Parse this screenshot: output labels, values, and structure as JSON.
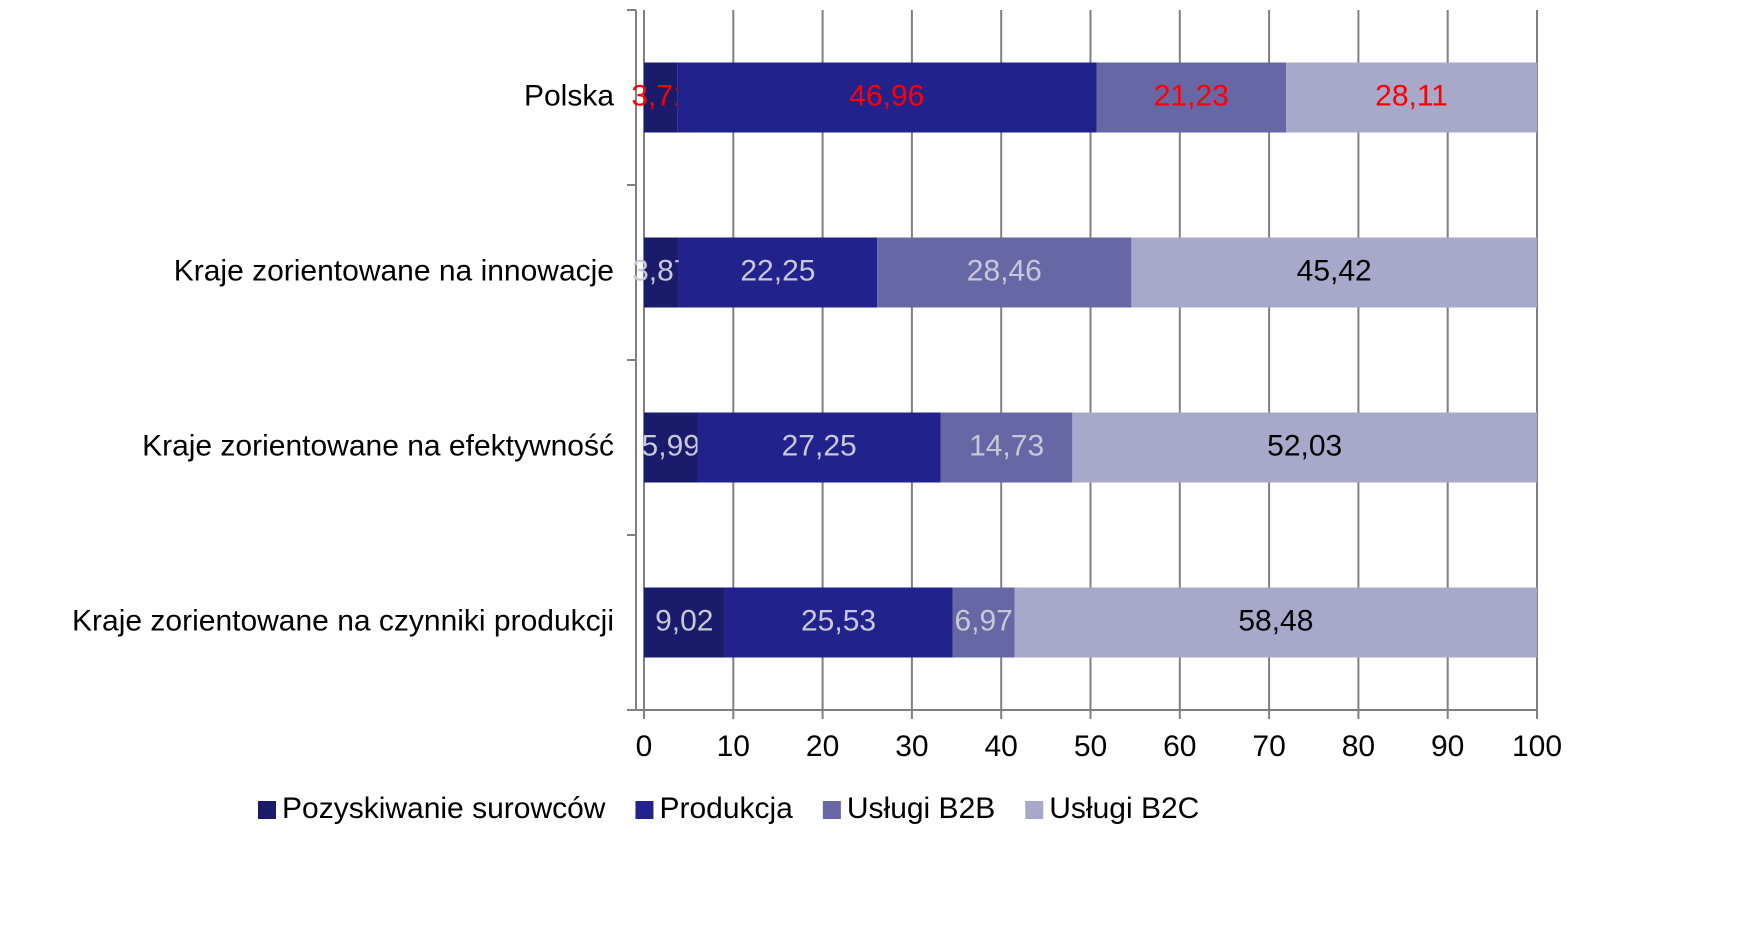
{
  "chart_data": {
    "type": "stacked_barh",
    "categories": [
      "Polska",
      "Kraje zorientowane na innowacje",
      "Kraje zorientowane na efektywność",
      "Kraje zorientowane na czynniki produkcji"
    ],
    "series": [
      {
        "name": "Pozyskiwanie surowców",
        "color": "#1b1b6b",
        "values": [
          3.71,
          3.87,
          5.99,
          9.02
        ],
        "value_labels": [
          "3,71",
          "3,87",
          "5,99",
          "9,02"
        ],
        "label_colors": [
          "#ff0000",
          "#c8c8d8",
          "#c8c8d8",
          "#c8c8d8"
        ]
      },
      {
        "name": "Produkcja",
        "color": "#22228c",
        "values": [
          46.96,
          22.25,
          27.25,
          25.53
        ],
        "value_labels": [
          "46,96",
          "22,25",
          "27,25",
          "25,53"
        ],
        "label_colors": [
          "#ff0000",
          "#c8c8d8",
          "#c8c8d8",
          "#c8c8d8"
        ]
      },
      {
        "name": "Usługi B2B",
        "color": "#6767a6",
        "values": [
          21.23,
          28.46,
          14.73,
          6.97
        ],
        "value_labels": [
          "21,23",
          "28,46",
          "14,73",
          "6,97"
        ],
        "label_colors": [
          "#ff0000",
          "#c8c8d8",
          "#c8c8d8",
          "#c8c8d8"
        ]
      },
      {
        "name": "Usługi B2C",
        "color": "#a8a8cb",
        "values": [
          28.11,
          45.42,
          52.03,
          58.48
        ],
        "value_labels": [
          "28,11",
          "45,42",
          "52,03",
          "58,48"
        ],
        "label_colors": [
          "#ff0000",
          "#000000",
          "#000000",
          "#000000"
        ]
      }
    ],
    "xlim": [
      0,
      100
    ],
    "xticks": [
      0,
      10,
      20,
      30,
      40,
      50,
      60,
      70,
      80,
      90,
      100
    ],
    "grid": true,
    "legend": "bottom"
  }
}
